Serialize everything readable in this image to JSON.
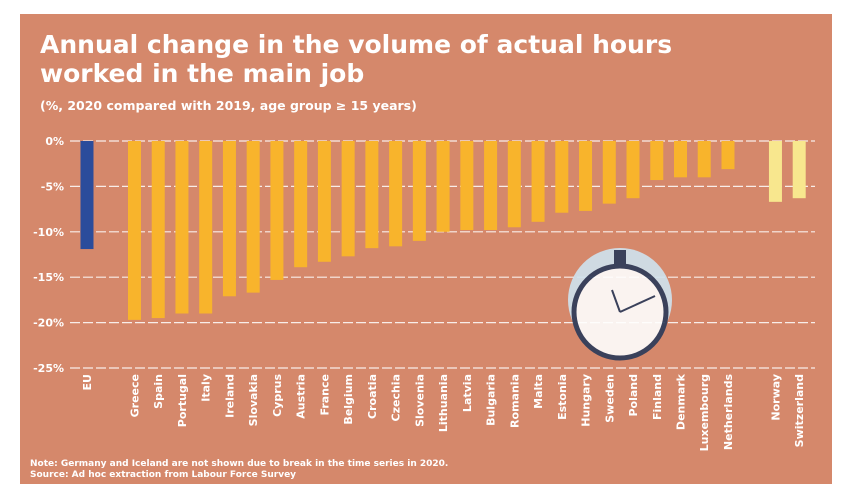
{
  "chart_data": {
    "type": "bar",
    "title": "Annual change in the volume of actual hours worked in the main job",
    "subtitle": "(%, 2020 compared with 2019, age group ≥ 15 years)",
    "categories": [
      "EU",
      null,
      "Greece",
      "Spain",
      "Portugal",
      "Italy",
      "Ireland",
      "Slovakia",
      "Cyprus",
      "Austria",
      "France",
      "Belgium",
      "Croatia",
      "Czechia",
      "Slovenia",
      "Lithuania",
      "Latvia",
      "Bulgaria",
      "Romania",
      "Malta",
      "Estonia",
      "Hungary",
      "Sweden",
      "Poland",
      "Finland",
      "Denmark",
      "Luxembourg",
      "Netherlands",
      null,
      "Norway",
      "Switzerland"
    ],
    "values": [
      -11.9,
      null,
      -19.7,
      -19.5,
      -19.0,
      -19.0,
      -17.1,
      -16.7,
      -15.3,
      -13.9,
      -13.3,
      -12.7,
      -11.8,
      -11.6,
      -11.0,
      -10.0,
      -9.8,
      -9.8,
      -9.5,
      -8.9,
      -7.9,
      -7.7,
      -6.9,
      -6.3,
      -4.3,
      -4.0,
      -4.0,
      -3.1,
      null,
      -6.7,
      -6.3
    ],
    "colors": [
      "#2b4c9b",
      null,
      "#f8b42c",
      "#f8b42c",
      "#f8b42c",
      "#f8b42c",
      "#f8b42c",
      "#f8b42c",
      "#f8b42c",
      "#f8b42c",
      "#f8b42c",
      "#f8b42c",
      "#f8b42c",
      "#f8b42c",
      "#f8b42c",
      "#f8b42c",
      "#f8b42c",
      "#f8b42c",
      "#f8b42c",
      "#f8b42c",
      "#f8b42c",
      "#f8b42c",
      "#f8b42c",
      "#f8b42c",
      "#f8b42c",
      "#f8b42c",
      "#f8b42c",
      "#f8b42c",
      null,
      "#f8e78e",
      "#f8e78e"
    ],
    "ylim": [
      -25,
      0
    ],
    "yticks": [
      {
        "value": 0,
        "label": "0%"
      },
      {
        "value": -5,
        "label": "-5%"
      },
      {
        "value": -10,
        "label": "-10%"
      },
      {
        "value": -15,
        "label": "-15%"
      },
      {
        "value": -20,
        "label": "-20%"
      },
      {
        "value": -25,
        "label": "-25%"
      }
    ],
    "grid": true,
    "notes": [
      "Note: Germany and Iceland are not shown due to break in the time series in 2020.",
      "Source: Ad hoc extraction from Labour Force Survey"
    ]
  }
}
